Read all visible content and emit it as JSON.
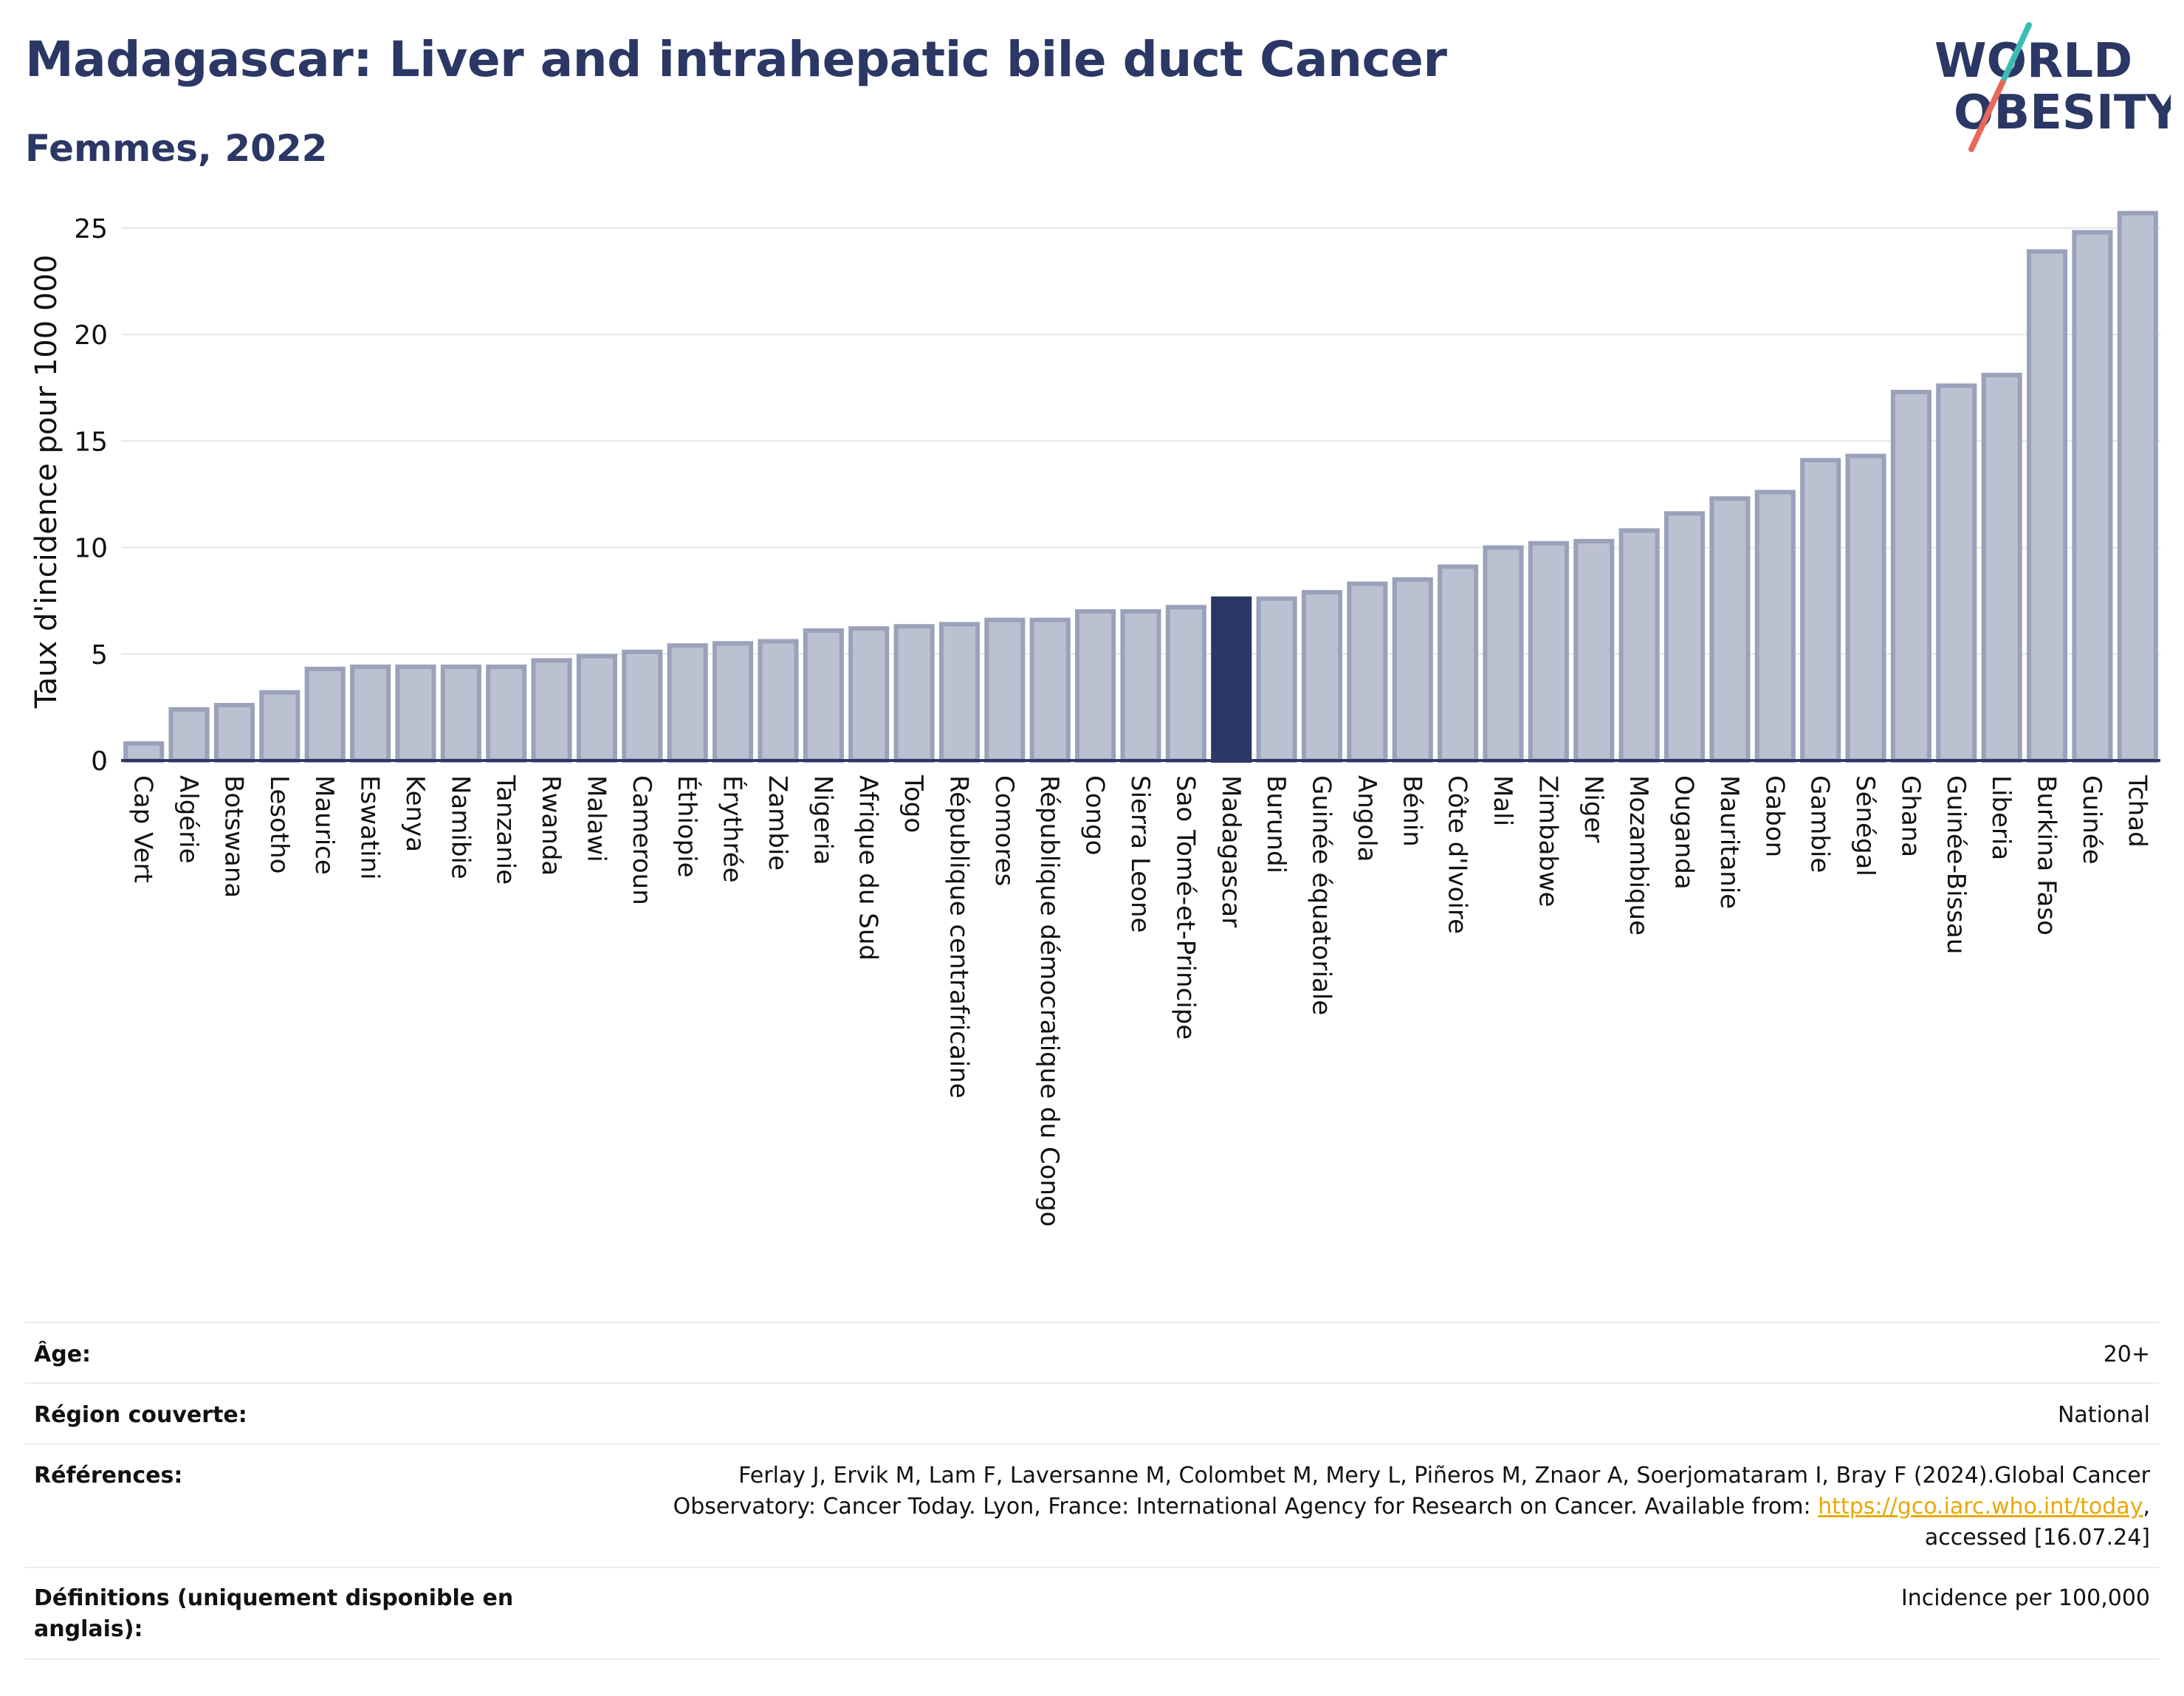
{
  "header": {
    "title": "Madagascar: Liver and intrahepatic bile duct Cancer",
    "subtitle": "Femmes, 2022"
  },
  "logo": {
    "line1": "WORLD",
    "line2": "OBESITY",
    "colors": {
      "text": "#2b3764",
      "slash_top": "#3bbcb4",
      "slash_bottom": "#e8685a"
    }
  },
  "colors": {
    "bar_fill": "#bcc1d1",
    "bar_stroke": "#9aa1ba",
    "highlight_fill": "#2b3764",
    "axis": "#2b3764",
    "grid": "#e6e6e6"
  },
  "chart_data": {
    "type": "bar",
    "title": "",
    "xlabel": "",
    "ylabel": "Taux d'incidence pour 100 000",
    "ylim": [
      0,
      26
    ],
    "yticks": [
      0,
      5,
      10,
      15,
      20,
      25
    ],
    "grid": true,
    "highlight": "Madagascar",
    "categories": [
      "Cap Vert",
      "Algérie",
      "Botswana",
      "Lesotho",
      "Maurice",
      "Eswatini",
      "Kenya",
      "Namibie",
      "Tanzanie",
      "Rwanda",
      "Malawi",
      "Cameroun",
      "Éthiopie",
      "Érythrée",
      "Zambie",
      "Nigeria",
      "Afrique du Sud",
      "Togo",
      "République centrafricaine",
      "Comores",
      "République démocratique du Congo",
      "Congo",
      "Sierra Leone",
      "Sao Tomé-et-Principe",
      "Madagascar",
      "Burundi",
      "Guinée équatoriale",
      "Angola",
      "Bénin",
      "Côte d'Ivoire",
      "Mali",
      "Zimbabwe",
      "Niger",
      "Mozambique",
      "Ouganda",
      "Mauritanie",
      "Gabon",
      "Gambie",
      "Sénégal",
      "Ghana",
      "Guinée-Bissau",
      "Liberia",
      "Burkina Faso",
      "Guinée",
      "Tchad"
    ],
    "values": [
      0.8,
      2.4,
      2.6,
      3.2,
      4.3,
      4.4,
      4.4,
      4.4,
      4.4,
      4.7,
      4.9,
      5.1,
      5.4,
      5.5,
      5.6,
      6.1,
      6.2,
      6.3,
      6.4,
      6.6,
      6.6,
      7.0,
      7.0,
      7.2,
      7.6,
      7.6,
      7.9,
      8.3,
      8.5,
      9.1,
      10.0,
      10.2,
      10.3,
      10.8,
      11.6,
      12.3,
      12.6,
      14.1,
      14.3,
      17.3,
      17.6,
      18.1,
      23.9,
      24.8,
      25.7
    ]
  },
  "meta": {
    "age_label": "Âge:",
    "age_value": "20+",
    "region_label": "Région couverte:",
    "region_value": "National",
    "refs_label": "Références:",
    "refs_line1": "Ferlay J, Ervik M, Lam F, Laversanne M, Colombet M, Mery L, Piñeros M, Znaor A, Soerjomataram I, Bray F (2024).Global Cancer",
    "refs_line2_text": "Observatory: Cancer Today. Lyon, France: International Agency for Research on Cancer. Available from: ",
    "refs_link": "https://gco.iarc.who.int/today",
    "refs_line2_end": ",",
    "refs_line3": "accessed [16.07.24]",
    "defs_label_1": "Définitions (uniquement disponible en",
    "defs_label_2": "anglais):",
    "defs_value": "Incidence per 100,000"
  }
}
